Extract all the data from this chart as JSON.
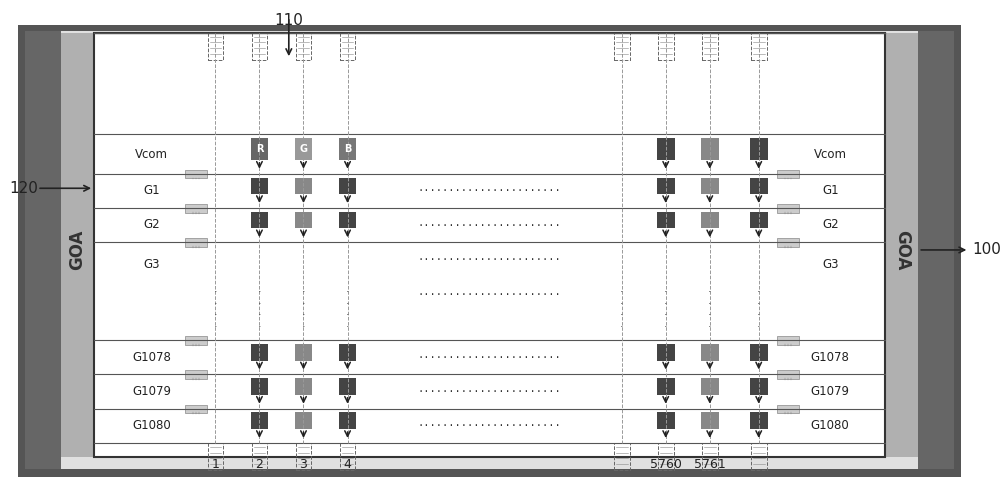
{
  "bg_color": "#ffffff",
  "outer_frame_color": "#555555",
  "inner_frame_color": "#888888",
  "goa_color": "#b0b0b0",
  "panel_bg": "#ffffff",
  "dark_gray": "#444444",
  "mid_gray": "#888888",
  "light_gray": "#bbbbbb",
  "title_110": "110",
  "title_120": "120",
  "title_100": "100",
  "label_vcom": "Vcom",
  "label_goa": "GOA",
  "row_labels_left": [
    "Vcom",
    "G1",
    "G2",
    "G3",
    "G1078",
    "G1079",
    "G1080"
  ],
  "row_labels_right": [
    "Vcom",
    "G1",
    "G2",
    "G3",
    "G1078",
    "G1079",
    "G1080"
  ],
  "col_labels_bottom_left": [
    "1",
    "2",
    "3",
    "4"
  ],
  "col_labels_bottom_right": [
    "5760",
    "5761"
  ],
  "dots_label": ".......................",
  "rgb_labels": [
    "R",
    "G",
    "B"
  ]
}
